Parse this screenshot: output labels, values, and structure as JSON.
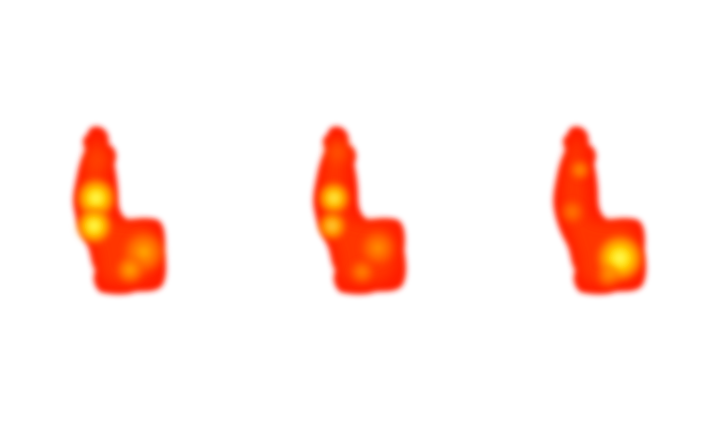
{
  "palette": {
    "background": "#ffffff",
    "outer": "#ff1a00",
    "mid": "#ff4a00",
    "warm": "#ff8800",
    "hot": "#ffcc00",
    "peak": "#ffff33"
  },
  "panels": [
    {
      "name": "heatmap-blob-left",
      "hotspots": [
        "upper-left",
        "mid-left"
      ],
      "peak_intensity": "high"
    },
    {
      "name": "heatmap-blob-middle",
      "hotspots": [
        "upper-left",
        "mid-left"
      ],
      "peak_intensity": "medium"
    },
    {
      "name": "heatmap-blob-right",
      "hotspots": [
        "lower-right"
      ],
      "peak_intensity": "high"
    }
  ]
}
